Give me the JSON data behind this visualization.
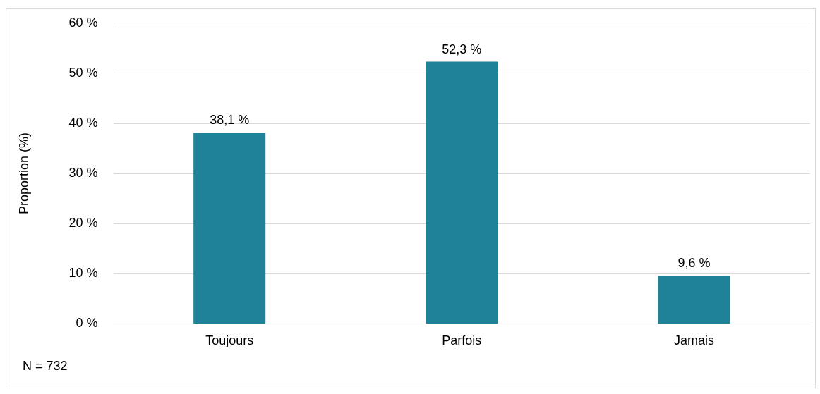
{
  "chart_data": {
    "type": "bar",
    "ylabel": "Proportion (%)",
    "categories": [
      "Toujours",
      "Parfois",
      "Jamais"
    ],
    "values": [
      38.1,
      52.3,
      9.6
    ],
    "color": "#1f8299",
    "value_labels": [
      "38,1 %",
      "52,3 %",
      "9,6 %"
    ],
    "ylim": [
      0,
      60
    ],
    "yticks": [
      {
        "value": 0,
        "label": "0 %"
      },
      {
        "value": 10,
        "label": "10 %"
      },
      {
        "value": 20,
        "label": "20 %"
      },
      {
        "value": 30,
        "label": "30 %"
      },
      {
        "value": 40,
        "label": "40 %"
      },
      {
        "value": 50,
        "label": "50 %"
      },
      {
        "value": 60,
        "label": "60 %"
      }
    ],
    "grid": "y",
    "legend": false,
    "annotations": [
      "N = 732"
    ]
  }
}
